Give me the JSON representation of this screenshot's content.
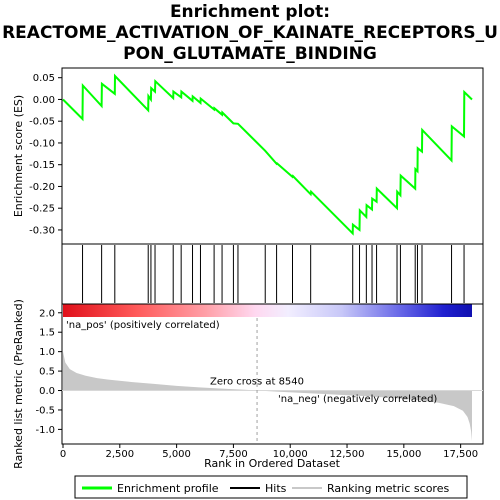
{
  "title": {
    "line1": "Enrichment plot:",
    "line2": "REACTOME_ACTIVATION_OF_KAINATE_RECEPTORS_U",
    "line3": "PON_GLUTAMATE_BINDING"
  },
  "colors": {
    "es_line": "#00ff00",
    "hits": "#000000",
    "metric_fill": "#c8c8c8",
    "pos_label": "#cc0000",
    "neg_label": "#0000cc",
    "zero_cross": "#a0a0a0"
  },
  "chart_data": [
    {
      "type": "line",
      "name": "enrichment-profile",
      "ylabel": "Enrichment score (ES)",
      "xlim": [
        0,
        18000
      ],
      "ylim": [
        -0.33,
        0.07
      ],
      "yticks": [
        0.05,
        0.0,
        -0.05,
        -0.1,
        -0.15,
        -0.2,
        -0.25,
        -0.3
      ],
      "ytick_labels": [
        "0.05",
        "0.00",
        "-0.05",
        "-0.10",
        "-0.15",
        "-0.20",
        "-0.25",
        "-0.30"
      ],
      "grid": false,
      "points": [
        [
          0,
          0.0
        ],
        [
          860,
          -0.045
        ],
        [
          870,
          0.032
        ],
        [
          1700,
          -0.015
        ],
        [
          1710,
          0.036
        ],
        [
          2280,
          0.013
        ],
        [
          2290,
          0.054
        ],
        [
          3750,
          -0.025
        ],
        [
          3760,
          0.008
        ],
        [
          3870,
          0.0
        ],
        [
          3880,
          0.026
        ],
        [
          4050,
          0.018
        ],
        [
          4060,
          0.042
        ],
        [
          4850,
          0.003
        ],
        [
          4860,
          0.018
        ],
        [
          5200,
          0.005
        ],
        [
          5210,
          0.018
        ],
        [
          5700,
          -0.003
        ],
        [
          5710,
          0.007
        ],
        [
          6050,
          -0.008
        ],
        [
          6060,
          0.002
        ],
        [
          6650,
          -0.023
        ],
        [
          6660,
          -0.02
        ],
        [
          7000,
          -0.035
        ],
        [
          7010,
          -0.03
        ],
        [
          7500,
          -0.055
        ],
        [
          7700,
          -0.056
        ],
        [
          8900,
          -0.118
        ],
        [
          9400,
          -0.148
        ],
        [
          9420,
          -0.147
        ],
        [
          10100,
          -0.178
        ],
        [
          10120,
          -0.176
        ],
        [
          10900,
          -0.218
        ],
        [
          10920,
          -0.212
        ],
        [
          12750,
          -0.308
        ],
        [
          12760,
          -0.288
        ],
        [
          13050,
          -0.3
        ],
        [
          13060,
          -0.255
        ],
        [
          13350,
          -0.27
        ],
        [
          13360,
          -0.243
        ],
        [
          13600,
          -0.253
        ],
        [
          13610,
          -0.228
        ],
        [
          13800,
          -0.235
        ],
        [
          13810,
          -0.205
        ],
        [
          14700,
          -0.25
        ],
        [
          14710,
          -0.212
        ],
        [
          14850,
          -0.22
        ],
        [
          14860,
          -0.175
        ],
        [
          15500,
          -0.205
        ],
        [
          15510,
          -0.16
        ],
        [
          15600,
          -0.165
        ],
        [
          15610,
          -0.112
        ],
        [
          15800,
          -0.12
        ],
        [
          15810,
          -0.07
        ],
        [
          17100,
          -0.14
        ],
        [
          17110,
          -0.062
        ],
        [
          17650,
          -0.085
        ],
        [
          17660,
          0.017
        ],
        [
          18000,
          0.0
        ]
      ]
    },
    {
      "type": "scatter",
      "name": "hits",
      "x": [
        860,
        1700,
        2280,
        3750,
        3870,
        4050,
        4850,
        5200,
        5700,
        6050,
        6650,
        7000,
        7500,
        7700,
        8900,
        9400,
        10100,
        10900,
        12750,
        13050,
        13350,
        13600,
        13800,
        14700,
        14850,
        15500,
        15600,
        15800,
        17100,
        17650
      ]
    },
    {
      "type": "area",
      "name": "ranking-metric-scores",
      "xlabel": "Rank in Ordered Dataset",
      "ylabel": "Ranked list metric (PreRanked)",
      "xlim": [
        0,
        18000
      ],
      "ylim": [
        -1.35,
        2.2
      ],
      "xticks": [
        0,
        2500,
        5000,
        7500,
        10000,
        12500,
        15000,
        17500
      ],
      "xtick_labels": [
        "0",
        "2,500",
        "5,000",
        "7,500",
        "10,000",
        "12,500",
        "15,000",
        "17,500"
      ],
      "yticks": [
        2.0,
        1.5,
        1.0,
        0.5,
        0.0,
        -0.5,
        -1.0
      ],
      "ytick_labels": [
        "2.0",
        "1.5",
        "1.0",
        "0.5",
        "0.0",
        "-0.5",
        "-1.0"
      ],
      "points": [
        [
          0,
          1.0
        ],
        [
          100,
          0.72
        ],
        [
          300,
          0.55
        ],
        [
          600,
          0.45
        ],
        [
          1000,
          0.38
        ],
        [
          1500,
          0.32
        ],
        [
          2000,
          0.28
        ],
        [
          3000,
          0.22
        ],
        [
          4000,
          0.17
        ],
        [
          5000,
          0.12
        ],
        [
          6000,
          0.08
        ],
        [
          7000,
          0.05
        ],
        [
          8000,
          0.02
        ],
        [
          8540,
          0.0
        ],
        [
          9500,
          -0.03
        ],
        [
          10500,
          -0.06
        ],
        [
          11500,
          -0.09
        ],
        [
          12500,
          -0.12
        ],
        [
          13500,
          -0.15
        ],
        [
          14500,
          -0.19
        ],
        [
          15500,
          -0.24
        ],
        [
          16500,
          -0.31
        ],
        [
          17200,
          -0.4
        ],
        [
          17600,
          -0.52
        ],
        [
          17800,
          -0.68
        ],
        [
          17900,
          -0.85
        ],
        [
          17960,
          -1.05
        ],
        [
          18000,
          -1.3
        ]
      ],
      "zero_cross_label": "Zero cross at 8540",
      "zero_cross_x": 8540,
      "pos_label": "'na_pos' (positively correlated)",
      "neg_label": "'na_neg' (negatively correlated)"
    }
  ],
  "legend": {
    "placement": "bottom",
    "items": [
      {
        "label": "Enrichment profile",
        "color": "#00ff00"
      },
      {
        "label": "Hits",
        "color": "#000000"
      },
      {
        "label": "Ranking metric scores",
        "color": "#c8c8c8"
      }
    ]
  }
}
